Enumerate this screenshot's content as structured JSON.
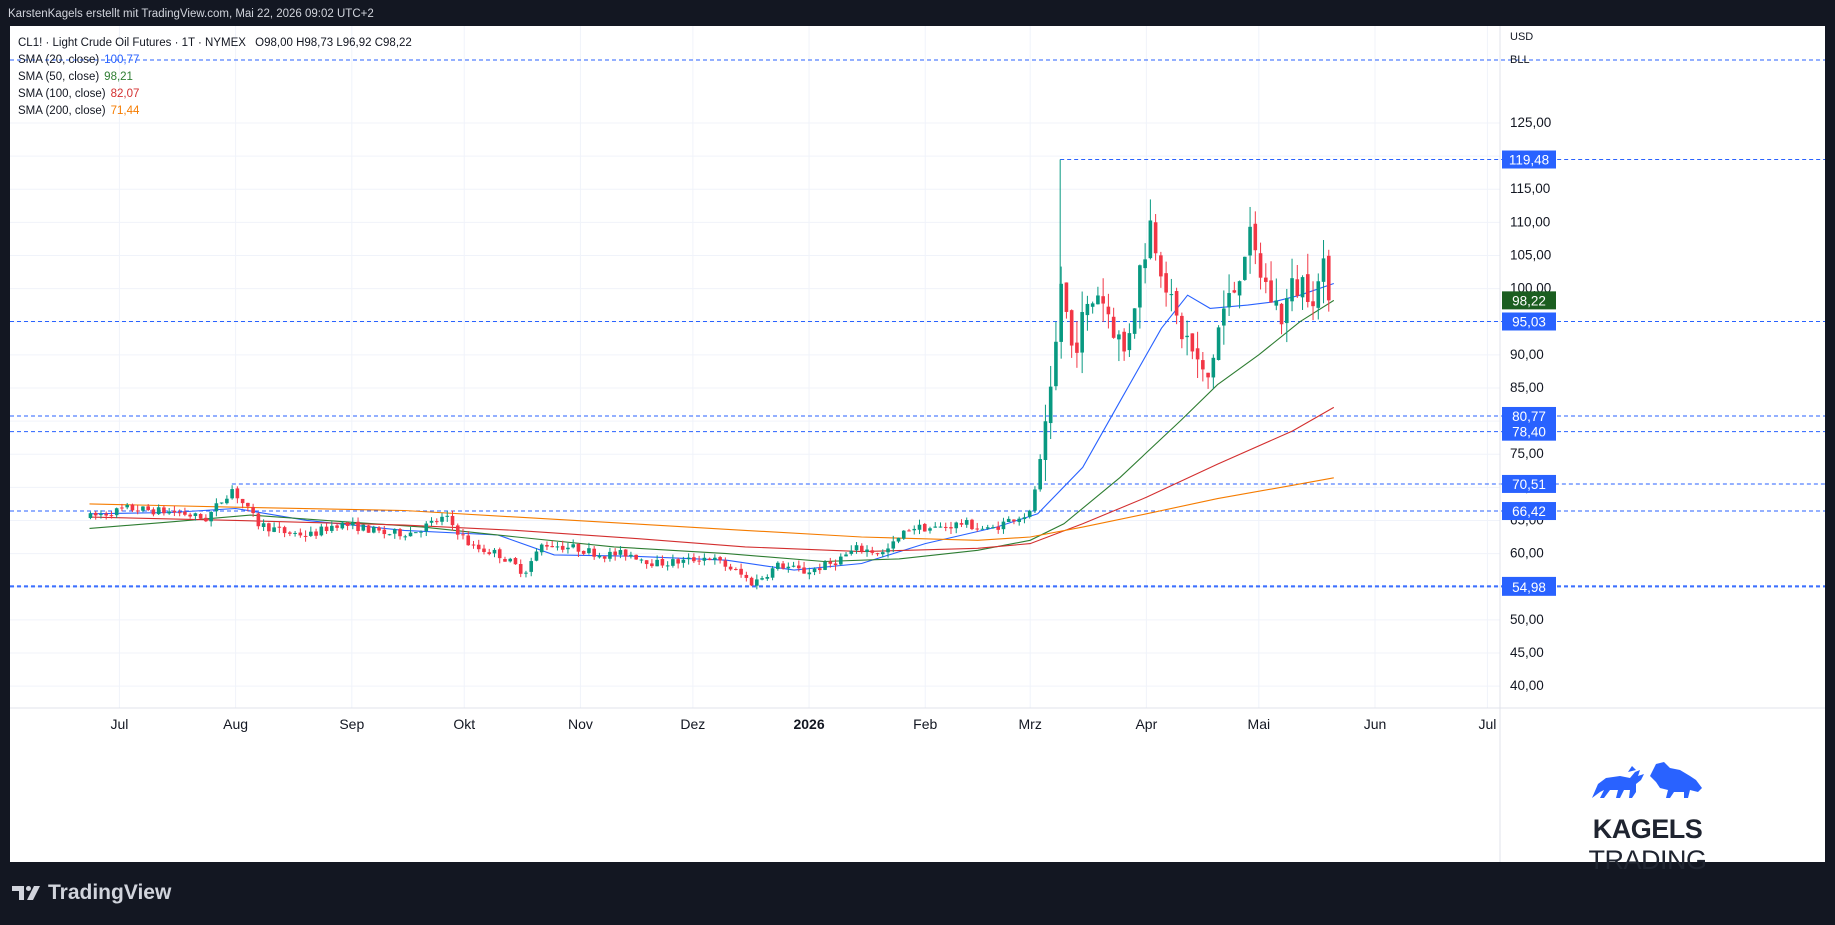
{
  "header": {
    "attribution": "KarstenKagels erstellt mit TradingView.com, Mai 22, 2026 09:02 UTC+2"
  },
  "legend": {
    "symbol": "CL1! · Light Crude Oil Futures · 1T · NYMEX",
    "ohlc": "O98,00  H98,73  L96,92  C98,22",
    "sma": [
      {
        "label": "SMA (20, close)",
        "value": "100,77",
        "color": "#2962ff"
      },
      {
        "label": "SMA (50, close)",
        "value": "98,21",
        "color": "#2e7d32"
      },
      {
        "label": "SMA (100, close)",
        "value": "82,07",
        "color": "#d32f2f"
      },
      {
        "label": "SMA (200, close)",
        "value": "71,44",
        "color": "#f57c00"
      }
    ]
  },
  "axis": {
    "currency": "USD",
    "unit": "BLL"
  },
  "watermark": {
    "brand_bold": "KAGELS",
    "brand_light": "TRADING"
  },
  "footer": {
    "logo": "TradingView"
  },
  "colors": {
    "up": "#089981",
    "down": "#f23645",
    "hline": "#2962ff",
    "current": "#1b5e20"
  },
  "chart_data": {
    "type": "candlestick",
    "ylim": [
      38.2,
      134.5
    ],
    "yticks": [
      "40,00",
      "45,00",
      "50,00",
      "55,00",
      "60,00",
      "65,00",
      "70,00",
      "75,00",
      "80,00",
      "85,00",
      "90,00",
      "95,00",
      "100,00",
      "105,00",
      "110,00",
      "115,00",
      "120,00",
      "125,00"
    ],
    "xticks": [
      {
        "label": "Jul",
        "date": "2025-07-01",
        "bold": false
      },
      {
        "label": "Aug",
        "date": "2025-08-01",
        "bold": false
      },
      {
        "label": "Sep",
        "date": "2025-09-01",
        "bold": false
      },
      {
        "label": "Okt",
        "date": "2025-10-01",
        "bold": false
      },
      {
        "label": "Nov",
        "date": "2025-11-01",
        "bold": false
      },
      {
        "label": "Dez",
        "date": "2025-12-01",
        "bold": false
      },
      {
        "label": "2026",
        "date": "2026-01-01",
        "bold": true
      },
      {
        "label": "Feb",
        "date": "2026-02-01",
        "bold": false
      },
      {
        "label": "Mrz",
        "date": "2026-03-01",
        "bold": false
      },
      {
        "label": "Apr",
        "date": "2026-04-01",
        "bold": false
      },
      {
        "label": "Mai",
        "date": "2026-05-01",
        "bold": false
      },
      {
        "label": "Jun",
        "date": "2026-06-01",
        "bold": false
      },
      {
        "label": "Jul",
        "date": "2026-07-01",
        "bold": false
      }
    ],
    "horizontal_levels": [
      {
        "value": 134.5,
        "label": ""
      },
      {
        "value": 119.48,
        "label": "119,48",
        "from_date": "2026-03-09"
      },
      {
        "value": 95.03,
        "label": "95,03"
      },
      {
        "value": 80.77,
        "label": "80,77"
      },
      {
        "value": 78.4,
        "label": "78,40"
      },
      {
        "value": 70.51,
        "label": "70,51",
        "from_date": "2025-07-31"
      },
      {
        "value": 66.42,
        "label": "66,42"
      },
      {
        "value": 55.12,
        "label": "55,12"
      },
      {
        "value": 54.98,
        "label": "54,98"
      }
    ],
    "last_price": {
      "value": 98.22,
      "label": "98,22"
    },
    "price_path": [
      [
        "2025-06-23",
        65.5
      ],
      [
        "2025-07-03",
        66.8
      ],
      [
        "2025-07-10",
        66.5
      ],
      [
        "2025-07-17",
        66.2
      ],
      [
        "2025-07-24",
        65.2
      ],
      [
        "2025-07-31",
        69.8
      ],
      [
        "2025-08-07",
        64.5
      ],
      [
        "2025-08-14",
        63.2
      ],
      [
        "2025-08-21",
        62.8
      ],
      [
        "2025-08-28",
        64.5
      ],
      [
        "2025-09-03",
        64.0
      ],
      [
        "2025-09-10",
        63.0
      ],
      [
        "2025-09-17",
        63.2
      ],
      [
        "2025-09-26",
        65.5
      ],
      [
        "2025-10-03",
        61.0
      ],
      [
        "2025-10-10",
        60.0
      ],
      [
        "2025-10-17",
        57.2
      ],
      [
        "2025-10-22",
        61.5
      ],
      [
        "2025-10-31",
        60.8
      ],
      [
        "2025-11-07",
        59.8
      ],
      [
        "2025-11-14",
        60.0
      ],
      [
        "2025-11-21",
        58.5
      ],
      [
        "2025-11-28",
        58.8
      ],
      [
        "2025-12-05",
        59.5
      ],
      [
        "2025-12-12",
        57.5
      ],
      [
        "2025-12-17",
        55.5
      ],
      [
        "2025-12-24",
        58.3
      ],
      [
        "2025-12-31",
        57.2
      ],
      [
        "2026-01-07",
        58.5
      ],
      [
        "2026-01-14",
        60.8
      ],
      [
        "2026-01-21",
        60.0
      ],
      [
        "2026-01-28",
        64.0
      ],
      [
        "2026-02-04",
        63.8
      ],
      [
        "2026-02-11",
        64.6
      ],
      [
        "2026-02-18",
        63.5
      ],
      [
        "2026-02-25",
        65.5
      ],
      [
        "2026-03-01",
        66.0
      ],
      [
        "2026-03-03",
        72.0
      ],
      [
        "2026-03-06",
        80.0
      ],
      [
        "2026-03-08",
        92.0
      ],
      [
        "2026-03-09",
        102.0
      ],
      [
        "2026-03-12",
        91.0
      ],
      [
        "2026-03-16",
        96.0
      ],
      [
        "2026-03-19",
        100.0
      ],
      [
        "2026-03-23",
        95.0
      ],
      [
        "2026-03-26",
        90.0
      ],
      [
        "2026-03-30",
        102.0
      ],
      [
        "2026-04-02",
        110.0
      ],
      [
        "2026-04-06",
        102.0
      ],
      [
        "2026-04-08",
        96.0
      ],
      [
        "2026-04-12",
        92.0
      ],
      [
        "2026-04-15",
        88.0
      ],
      [
        "2026-04-17",
        85.0
      ],
      [
        "2026-04-21",
        96.0
      ],
      [
        "2026-04-24",
        99.0
      ],
      [
        "2026-04-28",
        108.0
      ],
      [
        "2026-05-01",
        103.0
      ],
      [
        "2026-05-04",
        99.0
      ],
      [
        "2026-05-07",
        96.0
      ],
      [
        "2026-05-10",
        100.0
      ],
      [
        "2026-05-13",
        101.0
      ],
      [
        "2026-05-16",
        99.5
      ],
      [
        "2026-05-19",
        103.0
      ],
      [
        "2026-05-21",
        98.22
      ]
    ],
    "sma_series": [
      {
        "name": "SMA (20, close)",
        "color": "#2962ff",
        "points": [
          [
            "2025-06-23",
            66.0
          ],
          [
            "2025-07-15",
            66.2
          ],
          [
            "2025-08-01",
            66.8
          ],
          [
            "2025-08-20",
            65.0
          ],
          [
            "2025-09-15",
            63.5
          ],
          [
            "2025-10-10",
            62.8
          ],
          [
            "2025-10-25",
            59.8
          ],
          [
            "2025-11-15",
            59.6
          ],
          [
            "2025-12-10",
            59.0
          ],
          [
            "2025-12-28",
            57.5
          ],
          [
            "2026-01-15",
            58.5
          ],
          [
            "2026-02-01",
            61.5
          ],
          [
            "2026-02-20",
            64.0
          ],
          [
            "2026-03-03",
            66.0
          ],
          [
            "2026-03-15",
            73.0
          ],
          [
            "2026-03-25",
            83.0
          ],
          [
            "2026-04-05",
            94.0
          ],
          [
            "2026-04-12",
            99.0
          ],
          [
            "2026-04-18",
            97.0
          ],
          [
            "2026-04-28",
            97.5
          ],
          [
            "2026-05-05",
            98.0
          ],
          [
            "2026-05-12",
            99.0
          ],
          [
            "2026-05-21",
            100.77
          ]
        ]
      },
      {
        "name": "SMA (50, close)",
        "color": "#2e7d32",
        "points": [
          [
            "2025-06-23",
            63.8
          ],
          [
            "2025-07-15",
            64.8
          ],
          [
            "2025-08-05",
            65.8
          ],
          [
            "2025-08-25",
            65.0
          ],
          [
            "2025-09-20",
            64.0
          ],
          [
            "2025-10-15",
            62.5
          ],
          [
            "2025-11-10",
            61.0
          ],
          [
            "2025-12-10",
            60.0
          ],
          [
            "2026-01-05",
            58.8
          ],
          [
            "2026-01-25",
            59.2
          ],
          [
            "2026-02-15",
            60.5
          ],
          [
            "2026-03-01",
            62.0
          ],
          [
            "2026-03-10",
            64.5
          ],
          [
            "2026-03-25",
            71.5
          ],
          [
            "2026-04-10",
            80.0
          ],
          [
            "2026-04-20",
            85.5
          ],
          [
            "2026-05-01",
            90.0
          ],
          [
            "2026-05-12",
            95.0
          ],
          [
            "2026-05-21",
            98.21
          ]
        ]
      },
      {
        "name": "SMA (100, close)",
        "color": "#d32f2f",
        "points": [
          [
            "2025-06-23",
            65.5
          ],
          [
            "2025-08-01",
            65.0
          ],
          [
            "2025-09-15",
            64.3
          ],
          [
            "2025-10-15",
            63.5
          ],
          [
            "2025-11-15",
            62.3
          ],
          [
            "2025-12-15",
            61.0
          ],
          [
            "2026-01-15",
            60.3
          ],
          [
            "2026-02-15",
            60.8
          ],
          [
            "2026-03-01",
            61.5
          ],
          [
            "2026-03-15",
            64.5
          ],
          [
            "2026-04-01",
            68.5
          ],
          [
            "2026-04-20",
            73.5
          ],
          [
            "2026-05-10",
            78.5
          ],
          [
            "2026-05-21",
            82.07
          ]
        ]
      },
      {
        "name": "SMA (200, close)",
        "color": "#f57c00",
        "points": [
          [
            "2025-06-23",
            67.5
          ],
          [
            "2025-08-01",
            67.0
          ],
          [
            "2025-09-15",
            66.5
          ],
          [
            "2025-10-15",
            65.5
          ],
          [
            "2025-11-15",
            64.5
          ],
          [
            "2025-12-15",
            63.5
          ],
          [
            "2026-01-15",
            62.5
          ],
          [
            "2026-02-15",
            62.0
          ],
          [
            "2026-03-01",
            62.5
          ],
          [
            "2026-03-15",
            64.0
          ],
          [
            "2026-04-01",
            66.0
          ],
          [
            "2026-04-20",
            68.3
          ],
          [
            "2026-05-10",
            70.3
          ],
          [
            "2026-05-21",
            71.44
          ]
        ]
      }
    ]
  }
}
